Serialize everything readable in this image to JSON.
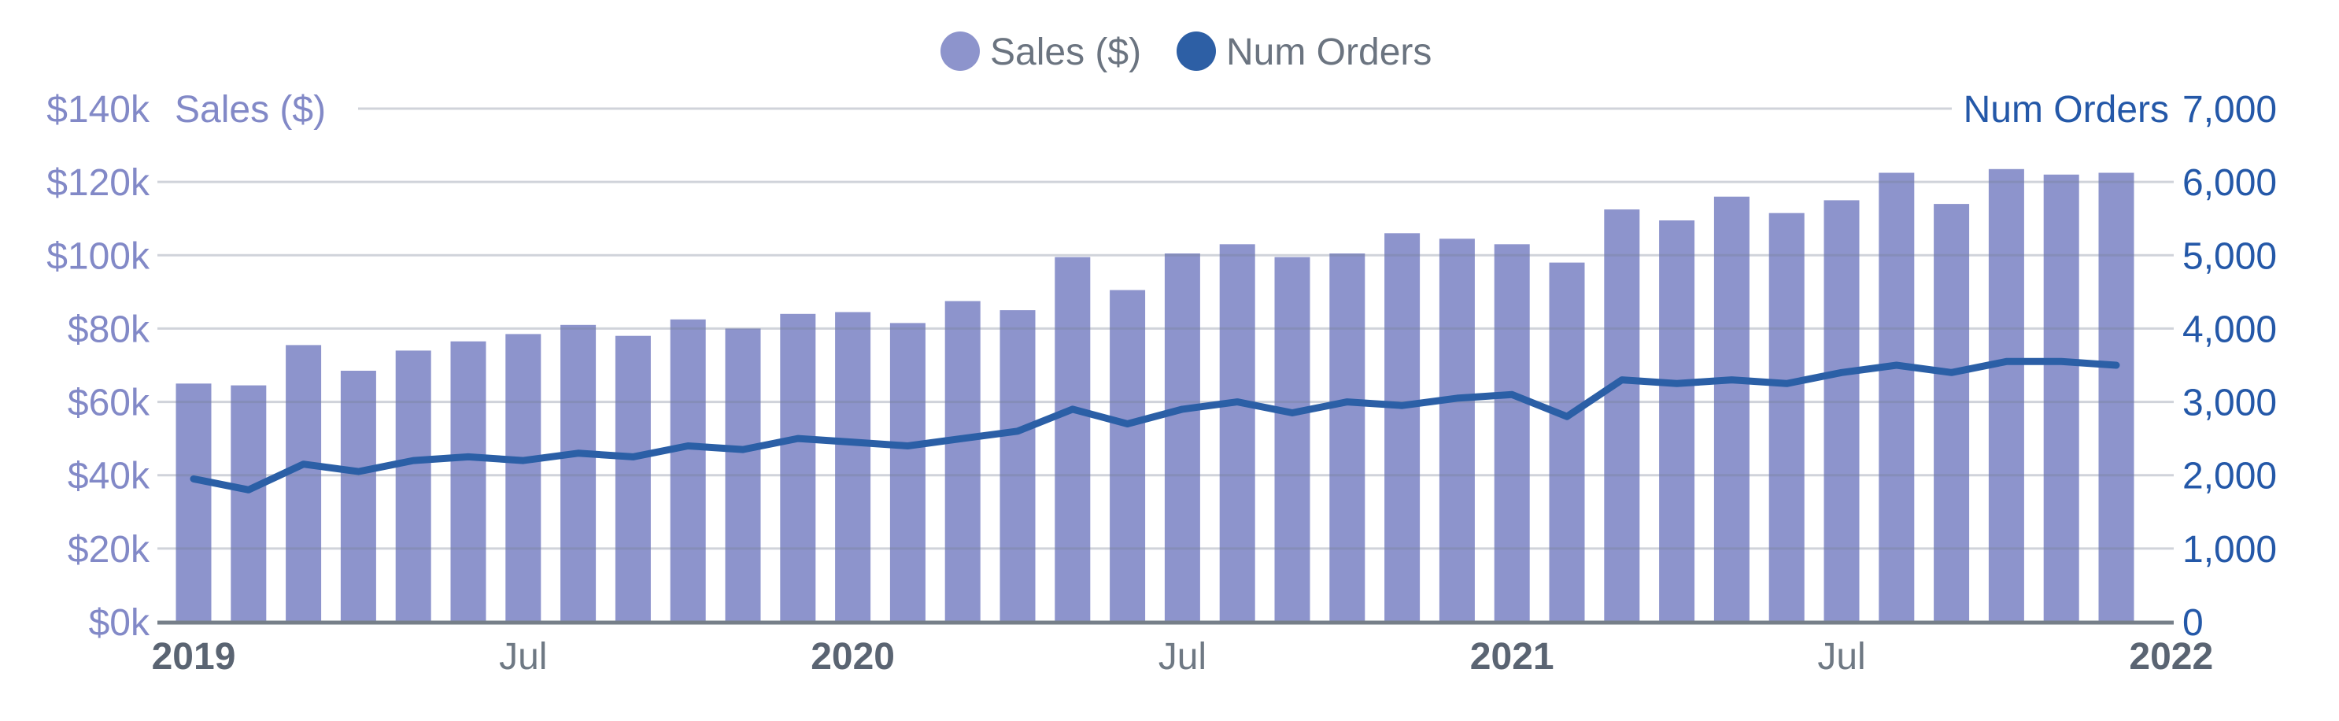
{
  "chart": {
    "legend": {
      "text_color": "#6b7480",
      "items": [
        {
          "label": "Sales ($)",
          "color": "#8d94cc"
        },
        {
          "label": "Num Orders",
          "color": "#2d5fa5"
        }
      ]
    },
    "axes": {
      "left": {
        "title": "Sales ($)",
        "color": "#8289c7",
        "tick_labels": [
          "$0k",
          "$20k",
          "$40k",
          "$60k",
          "$80k",
          "$100k",
          "$120k",
          "$140k"
        ]
      },
      "right": {
        "title": "Num Orders",
        "color": "#2458a8",
        "tick_labels": [
          "0",
          "1,000",
          "2,000",
          "3,000",
          "4,000",
          "5,000",
          "6,000",
          "7,000"
        ]
      },
      "x": {
        "year_color": "#5a6472",
        "month_color": "#6f7984",
        "tick_labels": [
          {
            "label": "2019",
            "bold": true
          },
          {
            "label": "Jul",
            "bold": false
          },
          {
            "label": "2020",
            "bold": true
          },
          {
            "label": "Jul",
            "bold": false
          },
          {
            "label": "2021",
            "bold": true
          },
          {
            "label": "Jul",
            "bold": false
          },
          {
            "label": "2022",
            "bold": true
          }
        ]
      }
    },
    "grid_color": "rgba(120,128,150,0.35)",
    "axis_line_color": "#767f89",
    "background": "#ffffff"
  },
  "chart_data": {
    "type": "bar",
    "title": "",
    "x": [
      "Jan 2019",
      "Feb 2019",
      "Mar 2019",
      "Apr 2019",
      "May 2019",
      "Jun 2019",
      "Jul 2019",
      "Aug 2019",
      "Sep 2019",
      "Oct 2019",
      "Nov 2019",
      "Dec 2019",
      "Jan 2020",
      "Feb 2020",
      "Mar 2020",
      "Apr 2020",
      "May 2020",
      "Jun 2020",
      "Jul 2020",
      "Aug 2020",
      "Sep 2020",
      "Oct 2020",
      "Nov 2020",
      "Dec 2020",
      "Jan 2021",
      "Feb 2021",
      "Mar 2021",
      "Apr 2021",
      "May 2021",
      "Jun 2021",
      "Jul 2021",
      "Aug 2021",
      "Sep 2021",
      "Oct 2021",
      "Nov 2021",
      "Dec 2021"
    ],
    "x_ticks": [
      "2019",
      "Jul",
      "2020",
      "Jul",
      "2021",
      "Jul",
      "2022"
    ],
    "series": [
      {
        "name": "Sales ($)",
        "type": "bar",
        "y_axis": "left",
        "color": "#8d94cc",
        "values": [
          65000,
          64500,
          75500,
          68500,
          74000,
          76500,
          78500,
          81000,
          78000,
          82500,
          80000,
          84000,
          84500,
          81500,
          87500,
          85000,
          99500,
          90500,
          100500,
          103000,
          99500,
          100500,
          106000,
          104500,
          103000,
          98000,
          112500,
          109500,
          116000,
          111500,
          115000,
          122500,
          114000,
          123500,
          122000,
          122500
        ]
      },
      {
        "name": "Num Orders",
        "type": "line",
        "y_axis": "right",
        "color": "#2b5fa6",
        "values": [
          1950,
          1800,
          2150,
          2050,
          2200,
          2250,
          2200,
          2300,
          2250,
          2400,
          2350,
          2500,
          2450,
          2400,
          2500,
          2600,
          2900,
          2700,
          2900,
          3000,
          2850,
          3000,
          2950,
          3050,
          3100,
          2800,
          3300,
          3250,
          3300,
          3250,
          3400,
          3500,
          3400,
          3550,
          3550,
          3500
        ]
      }
    ],
    "left_axis": {
      "label": "Sales ($)",
      "range": [
        0,
        140000
      ],
      "tick_step": 20000
    },
    "right_axis": {
      "label": "Num Orders",
      "range": [
        0,
        7000
      ],
      "tick_step": 1000
    },
    "grid": true,
    "legend_position": "top-center"
  }
}
